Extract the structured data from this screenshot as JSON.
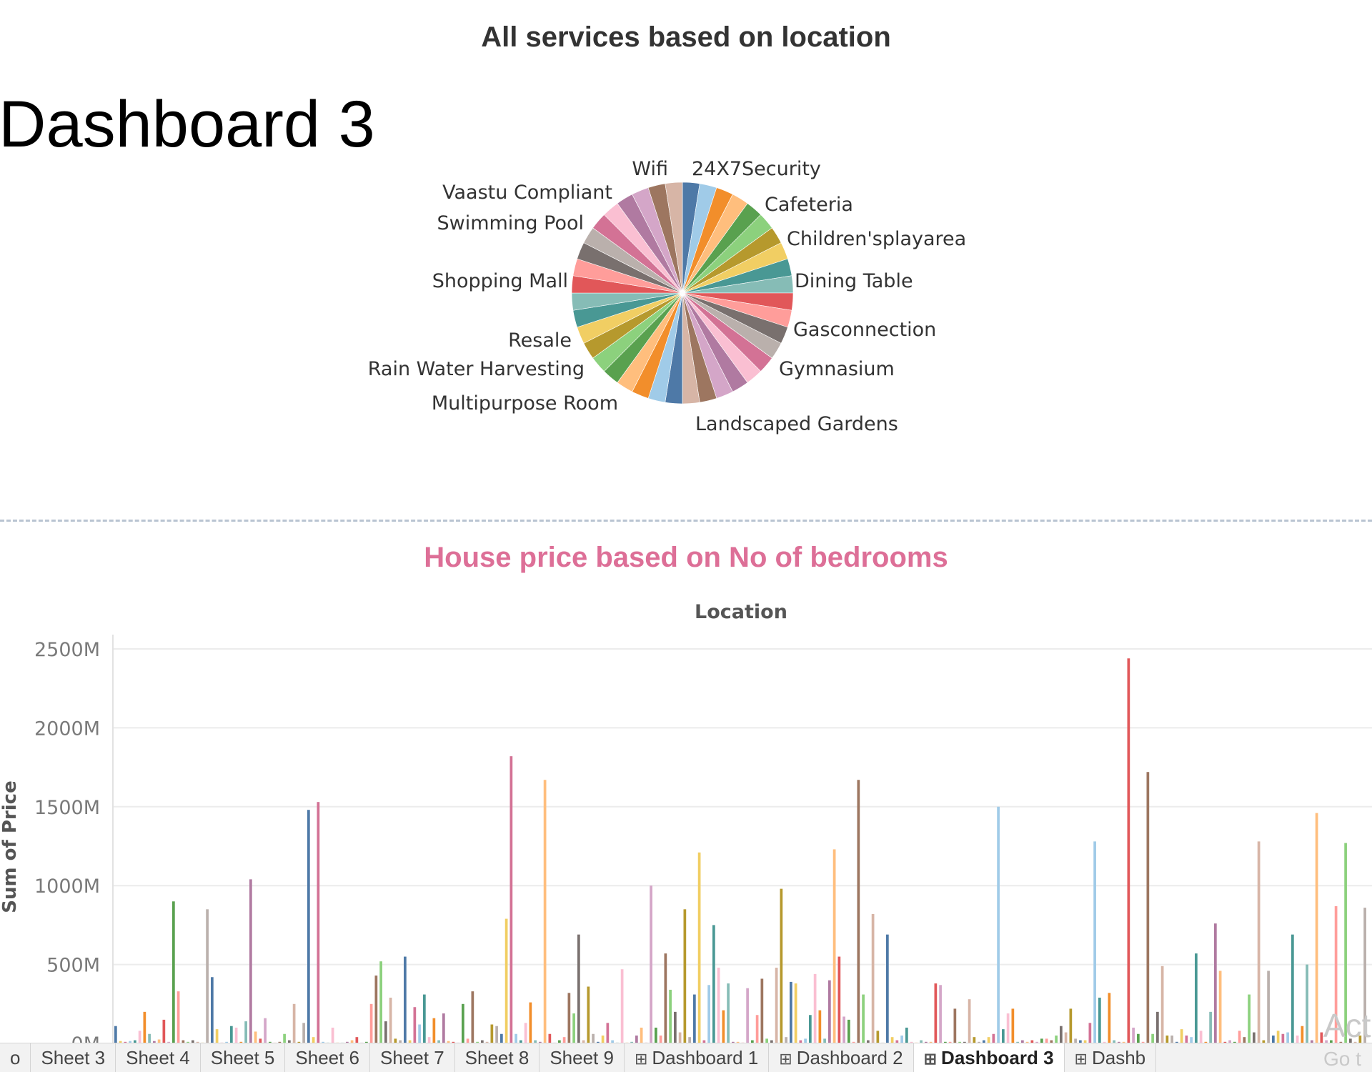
{
  "dashboard": {
    "title": "Dashboard 3"
  },
  "colors": {
    "palette": [
      "#4e79a7",
      "#a0cbe8",
      "#f28e2b",
      "#ffbe7d",
      "#59a14f",
      "#8cd17d",
      "#b6992d",
      "#f1ce63",
      "#499894",
      "#86bcb6",
      "#e15759",
      "#ff9d9a",
      "#79706e",
      "#bab0ac",
      "#d37295",
      "#fabfd2",
      "#b07aa1",
      "#d4a6c8",
      "#9d7660",
      "#d7b5a6"
    ],
    "bar_title": "#dd6f97"
  },
  "chart_data": [
    {
      "type": "pie",
      "title": "All services based on location",
      "labels": [
        "24X7Security",
        "Cafeteria",
        "Children'splayarea",
        "Dining Table",
        "Gasconnection",
        "Gymnasium",
        "Landscaped Gardens",
        "Multipurpose Room",
        "Rain Water Harvesting",
        "Resale",
        "Shopping Mall",
        "Swimming Pool",
        "Vaastu Compliant",
        "Wifi"
      ],
      "slices": 40,
      "legend": "none"
    },
    {
      "type": "bar",
      "title": "House  price based on No of bedrooms",
      "xlabel": "Location",
      "ylabel": "Sum of Price",
      "ylim": [
        0,
        2500
      ],
      "yticks": [
        "0M",
        "500M",
        "1000M",
        "1500M",
        "2000M",
        "2500M"
      ],
      "grid": true,
      "values": [
        110,
        15,
        10,
        15,
        20,
        80,
        200,
        60,
        15,
        25,
        150,
        10,
        900,
        330,
        20,
        10,
        20,
        10,
        5,
        850,
        420,
        90,
        5,
        10,
        110,
        100,
        10,
        140,
        1040,
        75,
        30,
        160,
        10,
        5,
        10,
        60,
        20,
        250,
        10,
        130,
        1480,
        40,
        1530,
        10,
        5,
        100,
        5,
        5,
        10,
        20,
        40,
        5,
        10,
        250,
        430,
        520,
        140,
        290,
        30,
        20,
        550,
        20,
        230,
        120,
        310,
        40,
        160,
        20,
        190,
        15,
        10,
        5,
        250,
        30,
        330,
        10,
        20,
        10,
        120,
        110,
        60,
        790,
        1820,
        60,
        20,
        130,
        260,
        20,
        10,
        1670,
        60,
        5,
        20,
        40,
        320,
        190,
        690,
        20,
        360,
        60,
        10,
        50,
        130,
        20,
        5,
        470,
        5,
        10,
        50,
        100,
        5,
        1000,
        100,
        50,
        570,
        340,
        200,
        70,
        850,
        40,
        310,
        1210,
        20,
        370,
        750,
        480,
        210,
        380,
        10,
        10,
        5,
        350,
        20,
        180,
        410,
        30,
        20,
        480,
        980,
        40,
        390,
        380,
        20,
        30,
        180,
        440,
        210,
        30,
        400,
        1230,
        550,
        170,
        150,
        10,
        1670,
        310,
        20,
        820,
        80,
        5,
        690,
        40,
        20,
        50,
        100,
        10,
        5,
        20,
        10,
        10,
        380,
        370,
        10,
        10,
        220,
        10,
        10,
        280,
        40,
        10,
        20,
        40,
        60,
        1500,
        90,
        190,
        220,
        10,
        20,
        10,
        20,
        10,
        30,
        30,
        20,
        50,
        110,
        70,
        220,
        30,
        20,
        20,
        130,
        1280,
        290,
        10,
        320,
        20,
        10,
        10,
        2440,
        100,
        60,
        10,
        1720,
        60,
        200,
        490,
        50,
        50,
        10,
        90,
        50,
        40,
        570,
        80,
        10,
        200,
        760,
        460,
        10,
        20,
        10,
        80,
        40,
        310,
        70,
        1280,
        20,
        460,
        50,
        80,
        60,
        70,
        690,
        50,
        110,
        500,
        20,
        1460,
        70,
        20,
        20,
        870,
        10,
        1270,
        30,
        10,
        50,
        860
      ]
    }
  ],
  "tabs": [
    {
      "label": "o",
      "icon": false,
      "active": false
    },
    {
      "label": "Sheet 3",
      "icon": false,
      "active": false
    },
    {
      "label": "Sheet 4",
      "icon": false,
      "active": false
    },
    {
      "label": "Sheet 5",
      "icon": false,
      "active": false
    },
    {
      "label": "Sheet 6",
      "icon": false,
      "active": false
    },
    {
      "label": "Sheet 7",
      "icon": false,
      "active": false
    },
    {
      "label": "Sheet 8",
      "icon": false,
      "active": false
    },
    {
      "label": "Sheet 9",
      "icon": false,
      "active": false
    },
    {
      "label": "Dashboard 1",
      "icon": true,
      "active": false
    },
    {
      "label": "Dashboard 2",
      "icon": true,
      "active": false
    },
    {
      "label": "Dashboard 3",
      "icon": true,
      "active": true
    },
    {
      "label": "Dashb",
      "icon": true,
      "active": false
    }
  ],
  "watermark": {
    "line1": "Act",
    "line2": "Go t"
  }
}
